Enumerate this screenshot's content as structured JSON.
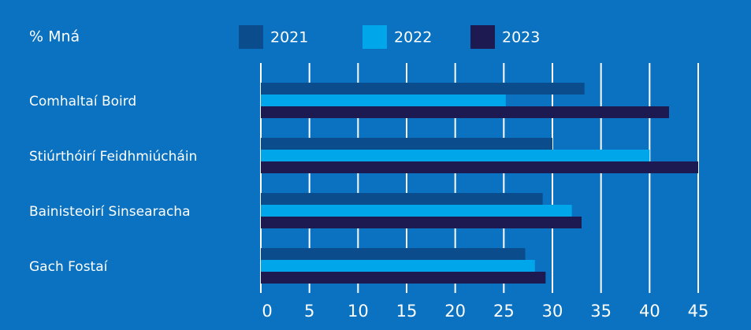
{
  "chart_data": {
    "type": "hbar",
    "title": "% Mná",
    "categories": [
      "Comhaltaí Boird",
      "Stiúrthóirí Feidhmiúcháin",
      "Bainisteoirí Sinsearacha",
      "Gach Fostaí"
    ],
    "series": [
      {
        "name": "2021",
        "color": "#0b4c8c",
        "values": [
          33.3,
          30,
          29,
          27.2
        ]
      },
      {
        "name": "2022",
        "color": "#00a6ea",
        "values": [
          25.2,
          40,
          32,
          28.2
        ]
      },
      {
        "name": "2023",
        "color": "#1d1a52",
        "values": [
          42,
          45,
          33,
          29.3
        ]
      }
    ],
    "xlim": [
      0,
      45
    ],
    "xticks": [
      0,
      5,
      10,
      15,
      20,
      25,
      30,
      35,
      40,
      45
    ],
    "grid": true
  }
}
